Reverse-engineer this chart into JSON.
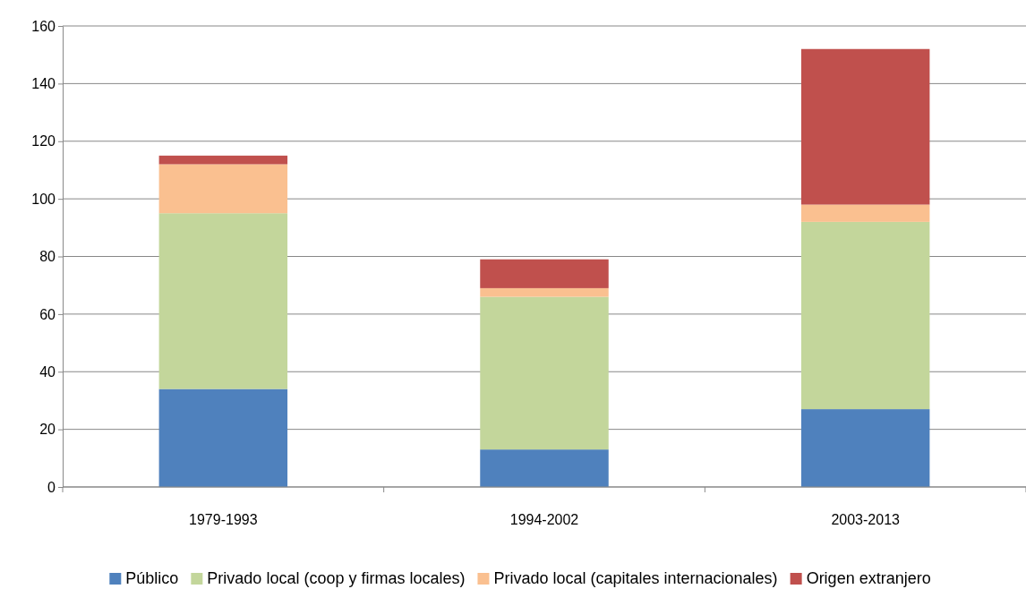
{
  "chart_data": {
    "type": "bar",
    "stacked": true,
    "categories": [
      "1979-1993",
      "1994-2002",
      "2003-2013"
    ],
    "series": [
      {
        "name": "Público",
        "color": "#4f81bd",
        "values": [
          34,
          13,
          27
        ]
      },
      {
        "name": "Privado local (coop y firmas locales)",
        "color": "#c3d69b",
        "values": [
          61,
          53,
          65
        ]
      },
      {
        "name": "Privado local (capitales internacionales)",
        "color": "#fac090",
        "values": [
          17,
          3,
          6
        ]
      },
      {
        "name": "Origen extranjero",
        "color": "#c0504d",
        "values": [
          3,
          10,
          54
        ]
      }
    ],
    "ylim": [
      0,
      160
    ],
    "yticks": [
      0,
      20,
      40,
      60,
      80,
      100,
      120,
      140,
      160
    ],
    "grid": "y",
    "legend": "bottom"
  }
}
